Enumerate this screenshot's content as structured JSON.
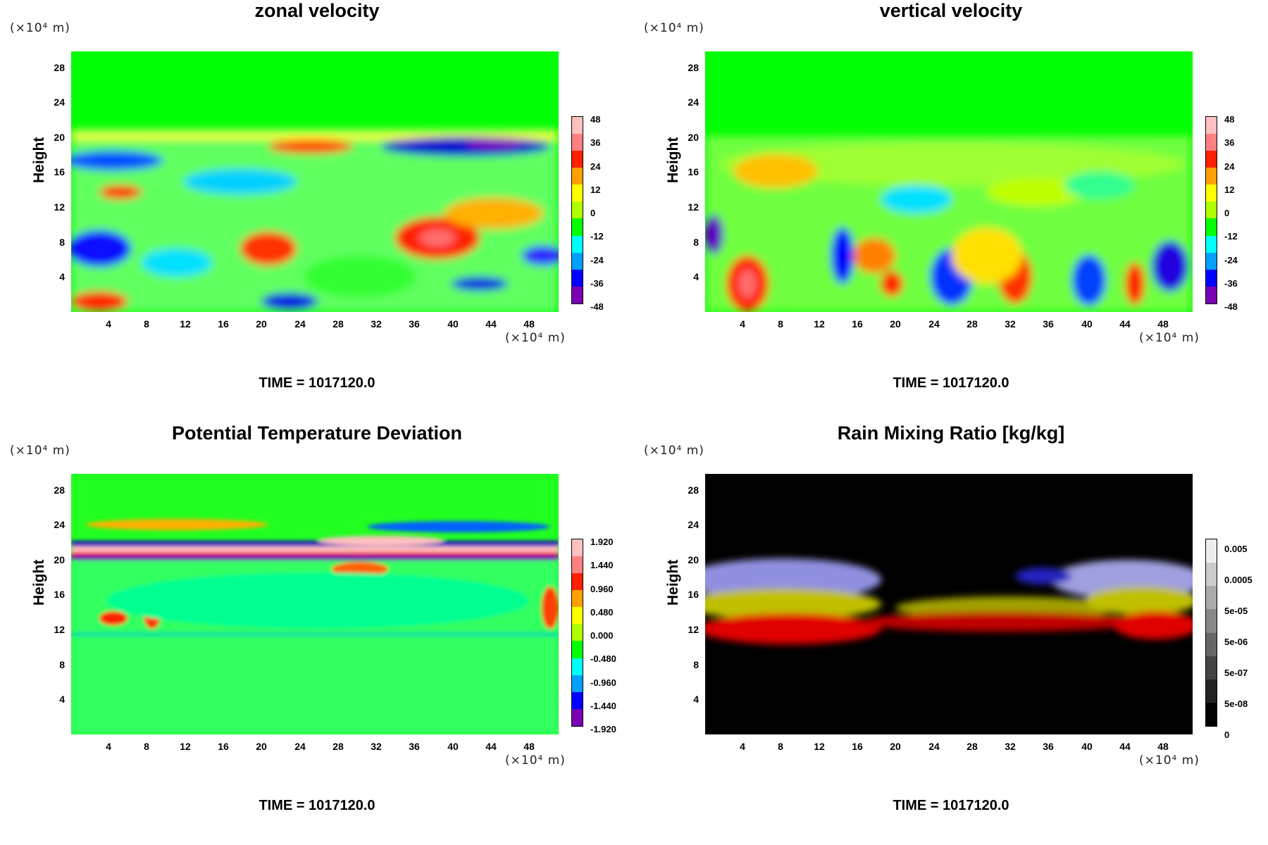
{
  "chart_data": [
    {
      "type": "heatmap",
      "title": "zonal velocity",
      "ylabel": "Height",
      "xlabel": "",
      "x_unit": "(×10⁴ m)",
      "y_unit": "(×10⁴ m)",
      "xticks": [
        "4",
        "8",
        "12",
        "16",
        "20",
        "24",
        "28",
        "32",
        "36",
        "40",
        "44",
        "48"
      ],
      "yticks": [
        "4",
        "8",
        "12",
        "16",
        "20",
        "24",
        "28"
      ],
      "xlim": [
        0,
        51.5
      ],
      "ylim": [
        0,
        30
      ],
      "colorbar": [
        "48",
        "36",
        "24",
        "12",
        "0",
        "-12",
        "-24",
        "-36",
        "-48"
      ],
      "colorbar_range": [
        -48,
        48
      ],
      "time_label": "TIME = 1017120.0"
    },
    {
      "type": "heatmap",
      "title": "vertical velocity",
      "ylabel": "Height",
      "xlabel": "",
      "x_unit": "(×10⁴ m)",
      "y_unit": "(×10⁴ m)",
      "xticks": [
        "4",
        "8",
        "12",
        "16",
        "20",
        "24",
        "28",
        "32",
        "36",
        "40",
        "44",
        "48"
      ],
      "yticks": [
        "4",
        "8",
        "12",
        "16",
        "20",
        "24",
        "28"
      ],
      "xlim": [
        0,
        51.5
      ],
      "ylim": [
        0,
        30
      ],
      "colorbar": [
        "48",
        "36",
        "24",
        "12",
        "0",
        "-12",
        "-24",
        "-36",
        "-48"
      ],
      "colorbar_range": [
        -48,
        48
      ],
      "time_label": "TIME = 1017120.0"
    },
    {
      "type": "heatmap",
      "title": "Potential Temperature Deviation",
      "ylabel": "Height",
      "xlabel": "",
      "x_unit": "(×10⁴ m)",
      "y_unit": "(×10⁴ m)",
      "xticks": [
        "4",
        "8",
        "12",
        "16",
        "20",
        "24",
        "28",
        "32",
        "36",
        "40",
        "44",
        "48"
      ],
      "yticks": [
        "4",
        "8",
        "12",
        "16",
        "20",
        "24",
        "28"
      ],
      "xlim": [
        0,
        51.5
      ],
      "ylim": [
        0,
        30
      ],
      "colorbar": [
        "1.920",
        "1.440",
        "0.960",
        "0.480",
        "0.000",
        "-0.480",
        "-0.960",
        "-1.440",
        "-1.920"
      ],
      "colorbar_range": [
        -1.92,
        1.92
      ],
      "time_label": "TIME = 1017120.0"
    },
    {
      "type": "heatmap",
      "title": "Rain Mixing Ratio [kg/kg]",
      "ylabel": "Height",
      "xlabel": "",
      "x_unit": "(×10⁴ m)",
      "y_unit": "(×10⁴ m)",
      "xticks": [
        "4",
        "8",
        "12",
        "16",
        "20",
        "24",
        "28",
        "32",
        "36",
        "40",
        "44",
        "48"
      ],
      "yticks": [
        "4",
        "8",
        "12",
        "16",
        "20",
        "24",
        "28"
      ],
      "xlim": [
        0,
        51.5
      ],
      "ylim": [
        0,
        30
      ],
      "colorbar": [
        "0.005",
        "0.0005",
        "5e-05",
        "5e-06",
        "5e-07",
        "5e-08",
        "0"
      ],
      "colorbar_scale": "log",
      "time_label": "TIME = 1017120.0"
    }
  ],
  "colors": {
    "background_field": "#00ff00",
    "rain_background": "#000000",
    "rainbow": [
      "#7a00b4",
      "#0000ff",
      "#00a0ff",
      "#00ffff",
      "#00ff00",
      "#b0ff00",
      "#ffff00",
      "#ffa000",
      "#ff2000",
      "#ff8080",
      "#ffc0c0"
    ],
    "grays": [
      "#000000",
      "#222222",
      "#444444",
      "#666666",
      "#888888",
      "#aaaaaa",
      "#cccccc",
      "#eeeeee"
    ]
  }
}
